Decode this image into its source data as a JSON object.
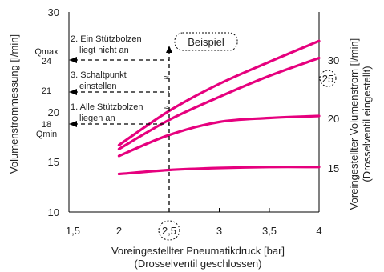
{
  "chart_data": {
    "type": "line",
    "xlabel": "Voreingestellter Pneumatikdruck [bar]",
    "xlabel_sub": "(Drosselventil geschlossen)",
    "ylabel": "Volumenstrommessung [l/min]",
    "y2label": "Voreingestellter Volumenstrom [l/min]",
    "y2label_sub": "(Drosselventil eingestellt)",
    "xlim": [
      1.5,
      4
    ],
    "ylim": [
      10,
      30
    ],
    "x_ticks": [
      "1,5",
      "2",
      "2,5",
      "3",
      "3,5",
      "4"
    ],
    "y_ticks": [
      "10",
      "15",
      "20",
      "30"
    ],
    "extra_y_labels": [
      "24",
      "Qmax",
      "21",
      "18",
      "Qmin"
    ],
    "grid": false,
    "series": [
      {
        "name": "30",
        "x": [
          2,
          2.5,
          3,
          3.5,
          4
        ],
        "y": [
          16.7,
          20.1,
          22.8,
          25,
          27.1
        ]
      },
      {
        "name": "25",
        "x": [
          2,
          2.5,
          3,
          3.5,
          4
        ],
        "y": [
          16.3,
          19.2,
          21.5,
          23.6,
          25.4
        ]
      },
      {
        "name": "20",
        "x": [
          2,
          2.5,
          3,
          3.5,
          4
        ],
        "y": [
          15.6,
          17.7,
          19,
          19.4,
          19.6
        ]
      },
      {
        "name": "15",
        "x": [
          2,
          2.5,
          3,
          3.5,
          4
        ],
        "y": [
          13.8,
          14.2,
          14.4,
          14.5,
          14.5
        ]
      }
    ],
    "callout": "Beispiel",
    "annotations": [
      "2. Ein Stützbolzen liegt nicht an",
      "3. Schaltpunkt einstellen",
      "1. Alle Stützbolzen liegen an"
    ],
    "highlight_x": "2,5",
    "colors": {
      "series": "#e6007e",
      "axis": "#000000"
    }
  }
}
